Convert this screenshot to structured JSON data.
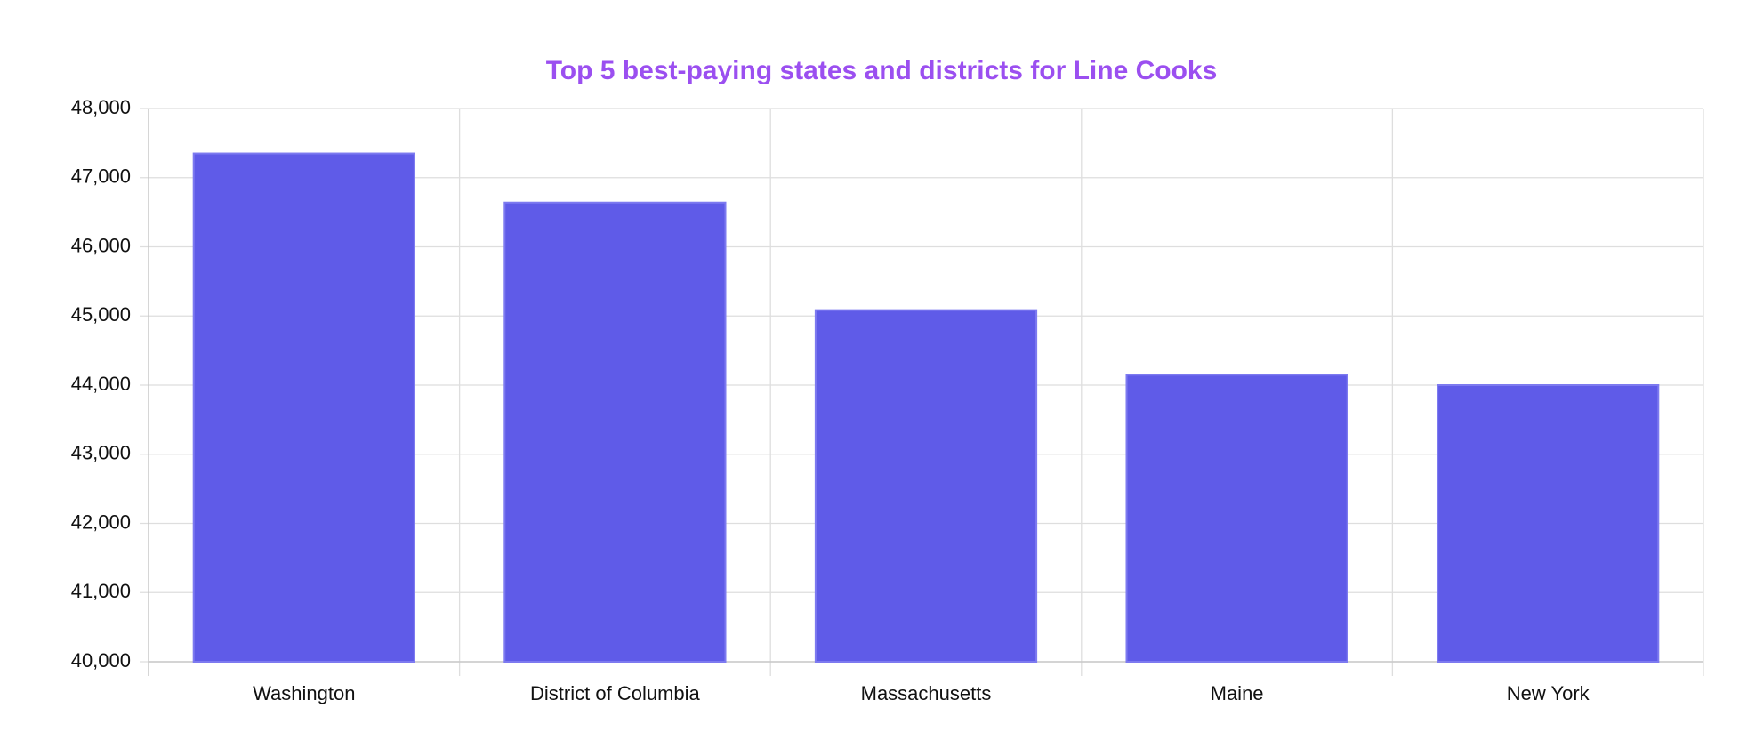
{
  "chart_data": {
    "type": "bar",
    "title": "Top 5 best-paying states and districts for Line Cooks",
    "title_color": "#9b4ff0",
    "categories": [
      "Washington",
      "District of Columbia",
      "Massachusetts",
      "Maine",
      "New York"
    ],
    "values": [
      47350,
      46640,
      45085,
      44150,
      44000
    ],
    "color": "#5f5be8",
    "ylim": [
      40000,
      48000
    ],
    "yticks": [
      {
        "value": 40000,
        "label": "40,000"
      },
      {
        "value": 41000,
        "label": "41,000"
      },
      {
        "value": 42000,
        "label": "42,000"
      },
      {
        "value": 43000,
        "label": "43,000"
      },
      {
        "value": 44000,
        "label": "44,000"
      },
      {
        "value": 45000,
        "label": "45,000"
      },
      {
        "value": 46000,
        "label": "46,000"
      },
      {
        "value": 47000,
        "label": "47,000"
      },
      {
        "value": 48000,
        "label": "48,000"
      }
    ],
    "grid": true
  }
}
